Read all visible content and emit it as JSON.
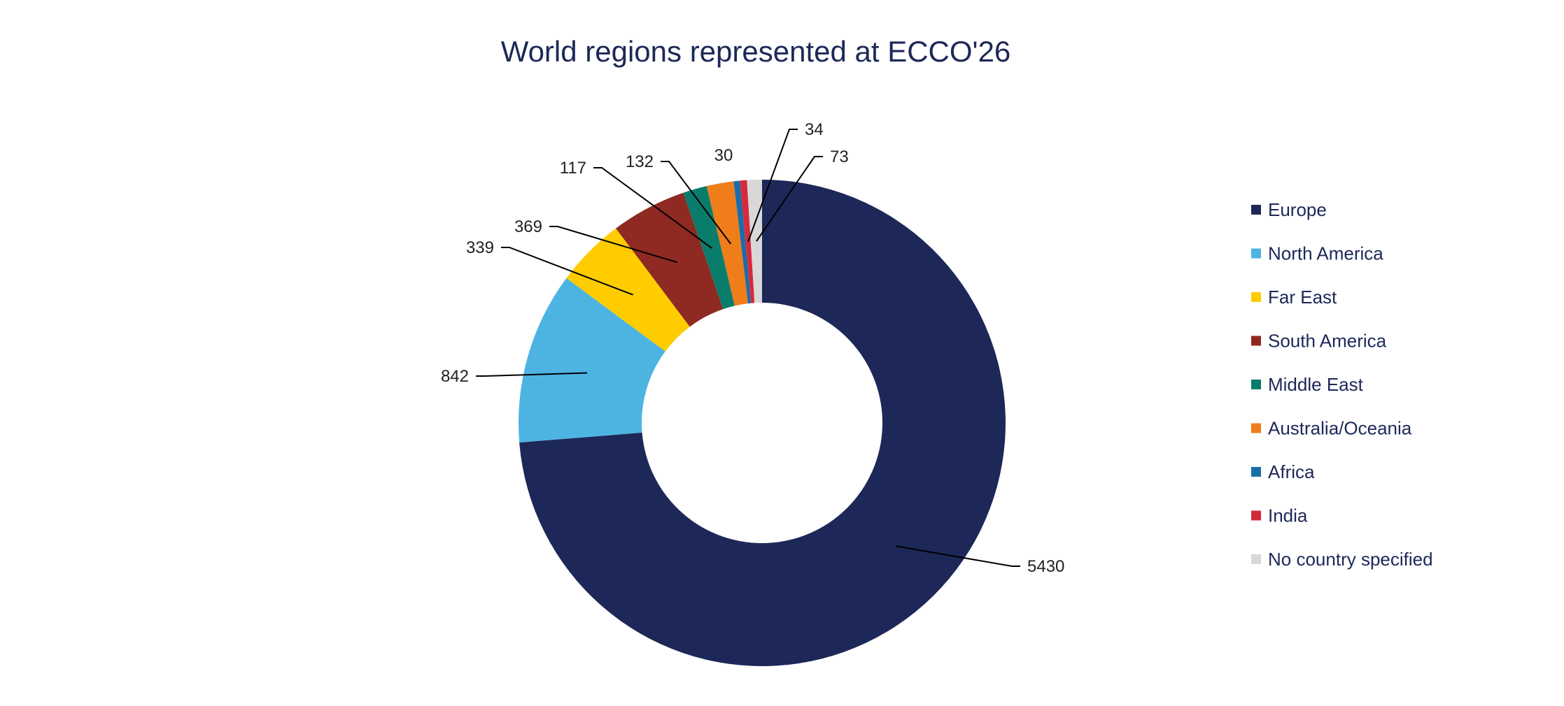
{
  "chart_data": {
    "type": "pie",
    "subtype": "donut",
    "title": "World regions represented at ECCO'26",
    "legend_position": "right",
    "series": [
      {
        "name": "Europe",
        "value": 5430,
        "color": "#1d2858"
      },
      {
        "name": "North America",
        "value": 842,
        "color": "#4db4e2"
      },
      {
        "name": "Far East",
        "value": 339,
        "color": "#ffcc00"
      },
      {
        "name": "South America",
        "value": 369,
        "color": "#8e2a22"
      },
      {
        "name": "Middle East",
        "value": 117,
        "color": "#0a7c6b"
      },
      {
        "name": "Australia/Oceania",
        "value": 132,
        "color": "#ee7d1a"
      },
      {
        "name": "Africa",
        "value": 30,
        "color": "#1a6ea8"
      },
      {
        "name": "India",
        "value": 34,
        "color": "#d52a3c"
      },
      {
        "name": "No country specified",
        "value": 73,
        "color": "#d8d8d8"
      }
    ]
  }
}
